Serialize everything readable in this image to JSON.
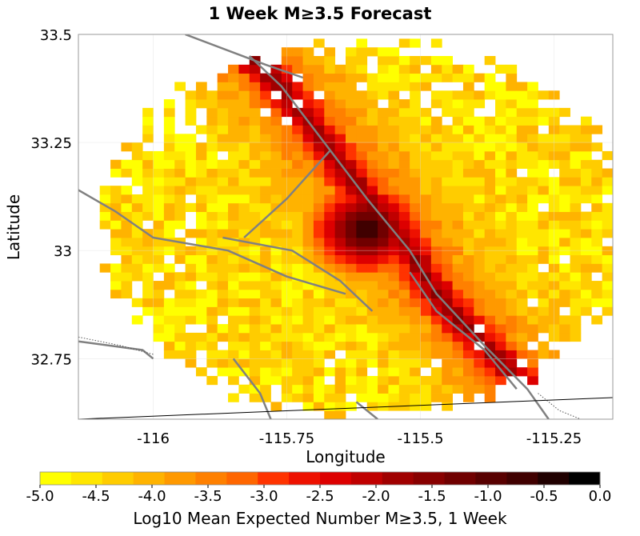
{
  "title": "1 Week M≥3.5 Forecast",
  "map": {
    "xlabel": "Longitude",
    "ylabel": "Latitude",
    "xlim": [
      -116.14,
      -115.14
    ],
    "ylim": [
      32.61,
      33.5
    ],
    "x_ticks": [
      {
        "value": -116,
        "label": "-116"
      },
      {
        "value": -115.75,
        "label": "-115.75"
      },
      {
        "value": -115.5,
        "label": "-115.5"
      },
      {
        "value": -115.25,
        "label": "-115.25"
      }
    ],
    "y_ticks": [
      {
        "value": 33.5,
        "label": "33.5"
      },
      {
        "value": 33.25,
        "label": "33.25"
      },
      {
        "value": 33.0,
        "label": "33"
      },
      {
        "value": 32.75,
        "label": "32.75"
      }
    ],
    "grid_cell_degrees": 0.02,
    "forecast_center": {
      "lon": -115.6,
      "lat": 33.05
    },
    "data_region_radius_degrees": 0.47,
    "peak_log10": -0.3,
    "background_log10": -5.0,
    "faults": [
      {
        "name": "fault-a",
        "points": [
          [
            -115.94,
            33.5
          ],
          [
            -115.79,
            33.43
          ],
          [
            -115.72,
            33.4
          ]
        ]
      },
      {
        "name": "fault-b",
        "points": [
          [
            -115.82,
            33.45
          ],
          [
            -115.76,
            33.38
          ],
          [
            -115.68,
            33.25
          ],
          [
            -115.6,
            33.12
          ],
          [
            -115.52,
            33.0
          ],
          [
            -115.47,
            32.9
          ],
          [
            -115.38,
            32.78
          ],
          [
            -115.3,
            32.68
          ],
          [
            -115.26,
            32.61
          ]
        ]
      },
      {
        "name": "fault-c",
        "points": [
          [
            -115.67,
            33.23
          ],
          [
            -115.75,
            33.12
          ],
          [
            -115.83,
            33.03
          ]
        ]
      },
      {
        "name": "fault-d",
        "points": [
          [
            -115.87,
            33.03
          ],
          [
            -115.74,
            33.0
          ],
          [
            -115.65,
            32.93
          ],
          [
            -115.59,
            32.86
          ]
        ]
      },
      {
        "name": "fault-e",
        "points": [
          [
            -116.14,
            33.14
          ],
          [
            -116.07,
            33.09
          ],
          [
            -116.0,
            33.03
          ],
          [
            -115.86,
            33.0
          ],
          [
            -115.75,
            32.94
          ],
          [
            -115.64,
            32.9
          ]
        ]
      },
      {
        "name": "fault-f",
        "points": [
          [
            -115.52,
            32.95
          ],
          [
            -115.47,
            32.86
          ],
          [
            -115.38,
            32.77
          ],
          [
            -115.32,
            32.68
          ]
        ]
      },
      {
        "name": "fault-g",
        "points": [
          [
            -115.85,
            32.75
          ],
          [
            -115.8,
            32.67
          ],
          [
            -115.78,
            32.61
          ]
        ]
      },
      {
        "name": "fault-h",
        "points": [
          [
            -115.62,
            32.65
          ],
          [
            -115.58,
            32.61
          ]
        ]
      },
      {
        "name": "fault-i",
        "points": [
          [
            -116.14,
            32.79
          ],
          [
            -116.02,
            32.77
          ],
          [
            -116.0,
            32.75
          ]
        ]
      }
    ],
    "border": {
      "name": "international-border",
      "points": [
        [
          -116.14,
          32.61
        ],
        [
          -115.14,
          32.66
        ]
      ]
    },
    "dotted_traces": [
      {
        "name": "coast-trace-west",
        "points": [
          [
            -116.14,
            32.8
          ],
          [
            -116.06,
            32.78
          ],
          [
            -116.0,
            32.76
          ]
        ]
      },
      {
        "name": "coast-trace-south",
        "points": [
          [
            -115.28,
            32.67
          ],
          [
            -115.24,
            32.63
          ],
          [
            -115.2,
            32.61
          ]
        ]
      }
    ]
  },
  "colorbar": {
    "label": "Log10 Mean Expected Number M≥3.5, 1 Week",
    "min": -5.0,
    "max": 0.0,
    "tick_values": [
      -5.0,
      -4.5,
      -4.0,
      -3.5,
      -3.0,
      -2.5,
      -2.0,
      -1.5,
      -1.0,
      -0.5,
      0.0
    ],
    "tick_labels": [
      "-5.0",
      "-4.5",
      "-4.0",
      "-3.5",
      "-3.0",
      "-2.5",
      "-2.0",
      "-1.5",
      "-1.0",
      "-0.5",
      "0.0"
    ],
    "colors": [
      "#ffff00",
      "#ffe600",
      "#ffcc00",
      "#ffb300",
      "#ff9900",
      "#ff8000",
      "#ff6600",
      "#ff3300",
      "#ee1100",
      "#dd0000",
      "#c00000",
      "#a00000",
      "#880000",
      "#700000",
      "#580000",
      "#400000",
      "#200000",
      "#000000"
    ]
  }
}
